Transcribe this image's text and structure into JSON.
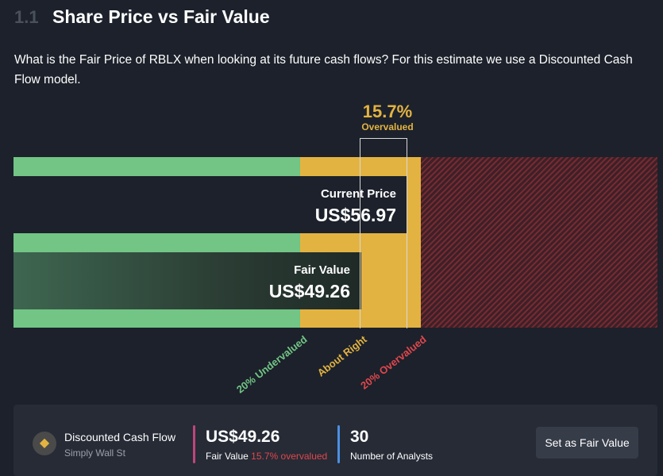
{
  "section": {
    "number": "1.1",
    "title": "Share Price vs Fair Value",
    "description": "What is the Fair Price of RBLX when looking at its future cash flows? For this estimate we use a Discounted Cash Flow model."
  },
  "valuation": {
    "percent": "15.7%",
    "status": "Overvalued",
    "current_price_label": "Current Price",
    "current_price_value": "US$56.97",
    "fair_value_label": "Fair Value",
    "fair_value_value": "US$49.26",
    "zones": {
      "undervalued": "20% Undervalued",
      "about_right": "About Right",
      "overvalued": "20% Overvalued"
    },
    "colors": {
      "green": "#72c585",
      "yellow": "#e3b341",
      "red": "#e0474c"
    }
  },
  "summary_card": {
    "model_name": "Discounted Cash Flow",
    "model_source": "Simply Wall St",
    "logo_icon": "bull-icon",
    "fair_value": "US$49.26",
    "fair_value_caption": "Fair Value",
    "fair_value_status": "15.7% overvalued",
    "analysts_count": "30",
    "analysts_caption": "Number of Analysts",
    "button_label": "Set as Fair Value"
  }
}
